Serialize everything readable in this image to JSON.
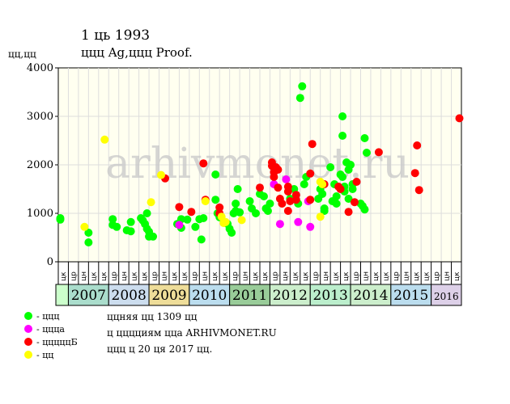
{
  "title": "1 ць 1993",
  "subtitle": "ццц Ag,ццц Proof.",
  "ylabel": "цц,цц",
  "watermark": "arhivmonet.ru",
  "legend": [
    {
      "label": "- ццц",
      "color": "#00ff00"
    },
    {
      "label": "- ццца",
      "color": "#ff00ff"
    },
    {
      "label": "- цццццБ",
      "color": "#ff0000"
    },
    {
      "label": "- цц",
      "color": "#ffff00"
    }
  ],
  "notes": [
    "ццняя цц 1309 цц",
    "ц цццциям цца ARHIVMONET.RU",
    "ццц ц 20 ця 2017 цц."
  ],
  "colors": {
    "grid": "#dddddd",
    "plot_bg": "#fffff0"
  },
  "chart_data": {
    "type": "scatter",
    "ylim": [
      0,
      4000
    ],
    "yticks": [
      "0",
      "1000",
      "2000",
      "3000",
      "4000"
    ],
    "xlim": [
      2006.55,
      2016.55
    ],
    "month_labels": [
      "цк",
      "цр",
      "цн",
      "цк"
    ],
    "years": [
      {
        "label": "",
        "color": "#ccffcc"
      },
      {
        "label": "2007",
        "color": "#aaddcc"
      },
      {
        "label": "2008",
        "color": "#ccddee"
      },
      {
        "label": "2009",
        "color": "#eedd99"
      },
      {
        "label": "2010",
        "color": "#bbddee"
      },
      {
        "label": "2011",
        "color": "#99cc99"
      },
      {
        "label": "2012",
        "color": "#cceecc"
      },
      {
        "label": "2013",
        "color": "#bbeecc"
      },
      {
        "label": "2014",
        "color": "#cceecc"
      },
      {
        "label": "2015",
        "color": "#bbddee"
      },
      {
        "label": "2016",
        "color": "#ddd0e8"
      }
    ],
    "series": [
      {
        "color": "#00ff00",
        "points": [
          [
            2006.6,
            900
          ],
          [
            2006.6,
            870
          ],
          [
            2007.3,
            600
          ],
          [
            2007.3,
            400
          ],
          [
            2007.9,
            880
          ],
          [
            2007.9,
            760
          ],
          [
            2008.0,
            720
          ],
          [
            2008.25,
            650
          ],
          [
            2008.35,
            630
          ],
          [
            2008.35,
            820
          ],
          [
            2008.6,
            900
          ],
          [
            2008.65,
            850
          ],
          [
            2008.7,
            780
          ],
          [
            2008.75,
            1000
          ],
          [
            2008.75,
            680
          ],
          [
            2008.8,
            620
          ],
          [
            2008.8,
            520
          ],
          [
            2008.9,
            520
          ],
          [
            2009.5,
            780
          ],
          [
            2009.6,
            700
          ],
          [
            2009.6,
            880
          ],
          [
            2009.75,
            870
          ],
          [
            2009.95,
            720
          ],
          [
            2010.05,
            880
          ],
          [
            2010.1,
            460
          ],
          [
            2010.15,
            900
          ],
          [
            2010.45,
            1800
          ],
          [
            2010.45,
            1280
          ],
          [
            2010.5,
            1000
          ],
          [
            2010.55,
            920
          ],
          [
            2010.75,
            780
          ],
          [
            2010.8,
            680
          ],
          [
            2010.85,
            600
          ],
          [
            2010.9,
            1000
          ],
          [
            2010.95,
            1200
          ],
          [
            2010.95,
            1050
          ],
          [
            2011.0,
            1500
          ],
          [
            2011.05,
            1020
          ],
          [
            2011.3,
            1250
          ],
          [
            2011.35,
            1100
          ],
          [
            2011.45,
            1000
          ],
          [
            2011.55,
            1400
          ],
          [
            2011.65,
            1350
          ],
          [
            2011.7,
            1100
          ],
          [
            2011.75,
            1050
          ],
          [
            2011.8,
            1200
          ],
          [
            2012.3,
            1300
          ],
          [
            2012.4,
            1500
          ],
          [
            2012.5,
            1200
          ],
          [
            2012.55,
            3380
          ],
          [
            2012.6,
            3620
          ],
          [
            2012.65,
            1600
          ],
          [
            2012.7,
            1750
          ],
          [
            2013.0,
            1300
          ],
          [
            2013.05,
            1500
          ],
          [
            2013.1,
            1400
          ],
          [
            2013.15,
            1100
          ],
          [
            2013.15,
            1050
          ],
          [
            2013.3,
            1950
          ],
          [
            2013.35,
            1250
          ],
          [
            2013.4,
            1600
          ],
          [
            2013.45,
            1350
          ],
          [
            2013.45,
            1200
          ],
          [
            2013.55,
            1800
          ],
          [
            2013.6,
            2600
          ],
          [
            2013.6,
            3000
          ],
          [
            2013.6,
            1750
          ],
          [
            2013.65,
            1550
          ],
          [
            2013.65,
            1450
          ],
          [
            2013.7,
            2050
          ],
          [
            2013.75,
            1900
          ],
          [
            2013.75,
            1300
          ],
          [
            2013.8,
            2000
          ],
          [
            2013.85,
            1600
          ],
          [
            2013.85,
            1500
          ],
          [
            2014.05,
            1200
          ],
          [
            2014.1,
            1150
          ],
          [
            2014.15,
            2550
          ],
          [
            2014.2,
            2250
          ],
          [
            2014.15,
            1080
          ]
        ]
      },
      {
        "color": "#ff00ff",
        "points": [
          [
            2009.55,
            760
          ],
          [
            2012.05,
            780
          ],
          [
            2012.2,
            1700
          ],
          [
            2012.5,
            820
          ],
          [
            2012.75,
            1250
          ],
          [
            2012.8,
            720
          ],
          [
            2011.9,
            1600
          ]
        ]
      },
      {
        "color": "#ff0000",
        "points": [
          [
            2009.2,
            1720
          ],
          [
            2009.55,
            1130
          ],
          [
            2009.85,
            1030
          ],
          [
            2010.15,
            2030
          ],
          [
            2010.2,
            1280
          ],
          [
            2010.55,
            1120
          ],
          [
            2010.55,
            1000
          ],
          [
            2011.55,
            1530
          ],
          [
            2011.85,
            2050
          ],
          [
            2011.85,
            1980
          ],
          [
            2011.9,
            1850
          ],
          [
            2011.9,
            1750
          ],
          [
            2011.95,
            1950
          ],
          [
            2012.0,
            1900
          ],
          [
            2012.0,
            1530
          ],
          [
            2012.05,
            1300
          ],
          [
            2012.1,
            1200
          ],
          [
            2012.25,
            1550
          ],
          [
            2012.25,
            1450
          ],
          [
            2012.25,
            1050
          ],
          [
            2012.3,
            1250
          ],
          [
            2012.45,
            1380
          ],
          [
            2012.45,
            1280
          ],
          [
            2012.8,
            1820
          ],
          [
            2012.85,
            2430
          ],
          [
            2012.8,
            1280
          ],
          [
            2013.15,
            1600
          ],
          [
            2013.5,
            1550
          ],
          [
            2013.55,
            1500
          ],
          [
            2013.75,
            1030
          ],
          [
            2013.9,
            1230
          ],
          [
            2013.95,
            1650
          ],
          [
            2014.5,
            2260
          ],
          [
            2015.4,
            1830
          ],
          [
            2015.45,
            2400
          ],
          [
            2015.5,
            1480
          ],
          [
            2016.5,
            2960
          ]
        ]
      },
      {
        "color": "#ffff00",
        "points": [
          [
            2007.2,
            720
          ],
          [
            2007.7,
            2520
          ],
          [
            2008.85,
            1230
          ],
          [
            2009.1,
            1790
          ],
          [
            2010.2,
            1250
          ],
          [
            2010.6,
            930
          ],
          [
            2010.65,
            800
          ],
          [
            2010.7,
            820
          ],
          [
            2011.1,
            860
          ],
          [
            2013.05,
            930
          ],
          [
            2013.05,
            1650
          ],
          [
            2013.1,
            1600
          ]
        ]
      }
    ]
  }
}
